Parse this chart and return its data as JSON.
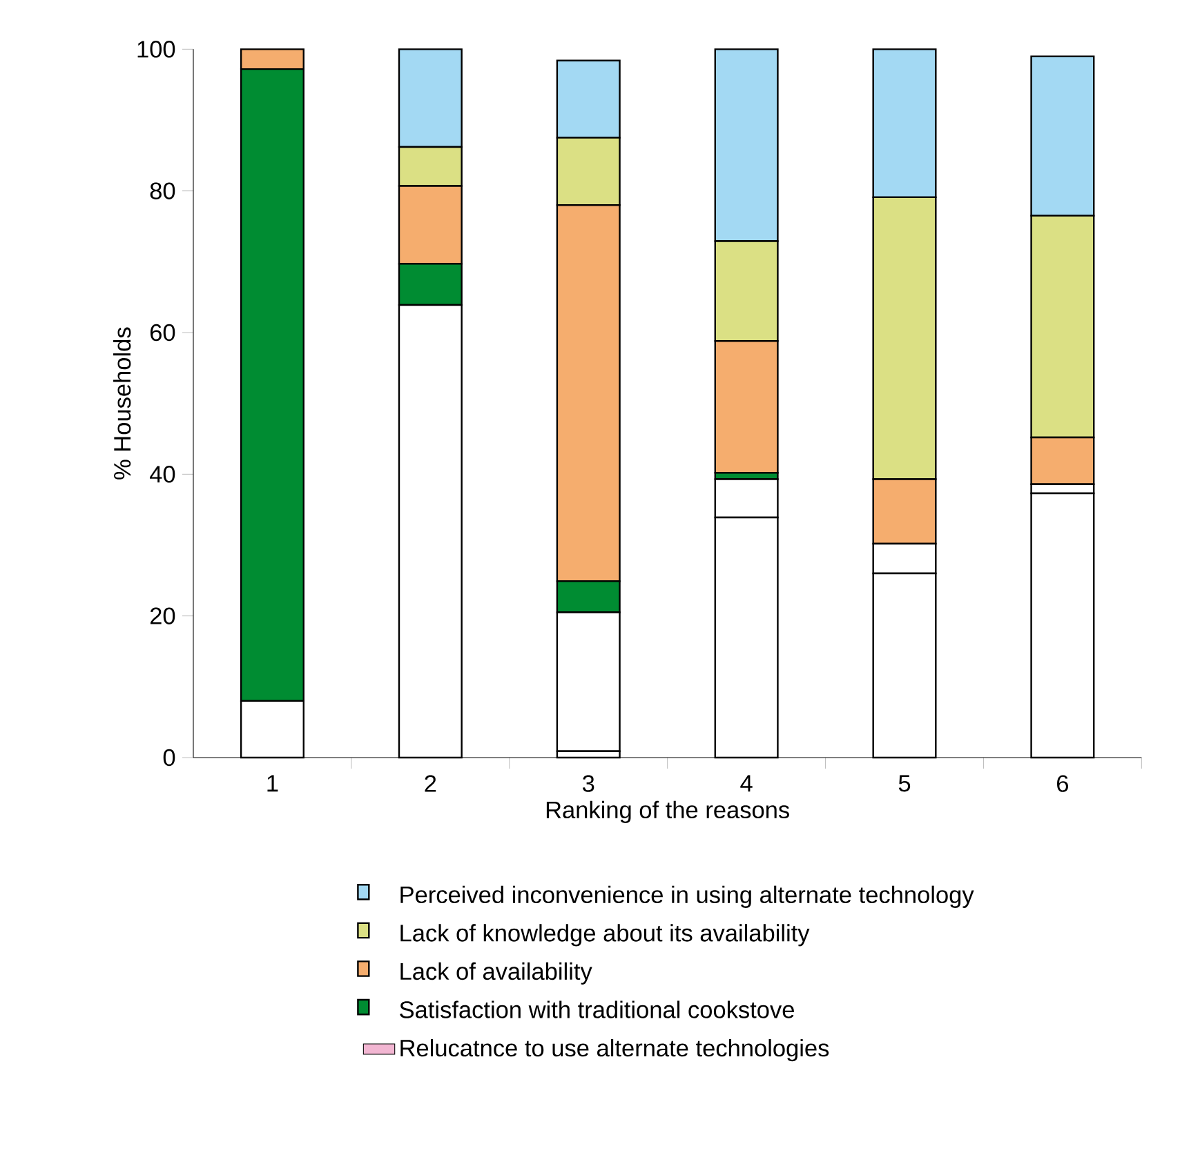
{
  "chart_data": {
    "type": "bar",
    "stacked": true,
    "xlabel": "Ranking of the reasons",
    "ylabel": "% Households",
    "categories": [
      "1",
      "2",
      "3",
      "4",
      "5",
      "6"
    ],
    "ylim": [
      0,
      100
    ],
    "yticks": [
      0,
      20,
      40,
      60,
      80,
      100
    ],
    "legend": "bottom",
    "grid": false,
    "series": [
      {
        "color": "#ffffff",
        "values": [
          8.0,
          63.9,
          0.9,
          33.9,
          26.0,
          37.3
        ]
      },
      {
        "color": "#ffffff",
        "values": [
          0,
          0,
          19.6,
          5.4,
          4.2,
          1.3
        ]
      },
      {
        "name": "Relucatnce to use alternate technologies",
        "color": "#f2b6d2",
        "values": [
          null,
          null,
          null,
          null,
          null,
          null
        ]
      },
      {
        "name": "Satisfaction with traditional cookstove",
        "color": "#008c32",
        "values": [
          89.2,
          5.8,
          4.4,
          0.9,
          0,
          0
        ]
      },
      {
        "name": "Lack of availability",
        "color": "#f5ad6e",
        "values": [
          2.8,
          11.0,
          53.1,
          18.6,
          9.1,
          6.6
        ]
      },
      {
        "name": "Lack of knowledge about its availability",
        "color": "#dbe084",
        "values": [
          0,
          5.5,
          9.5,
          14.1,
          39.8,
          31.3
        ]
      },
      {
        "name": "Perceived inconvenience in using alternate technology",
        "color": "#a3d9f3",
        "values": [
          0,
          13.8,
          10.9,
          27.1,
          20.9,
          22.5
        ]
      }
    ]
  }
}
